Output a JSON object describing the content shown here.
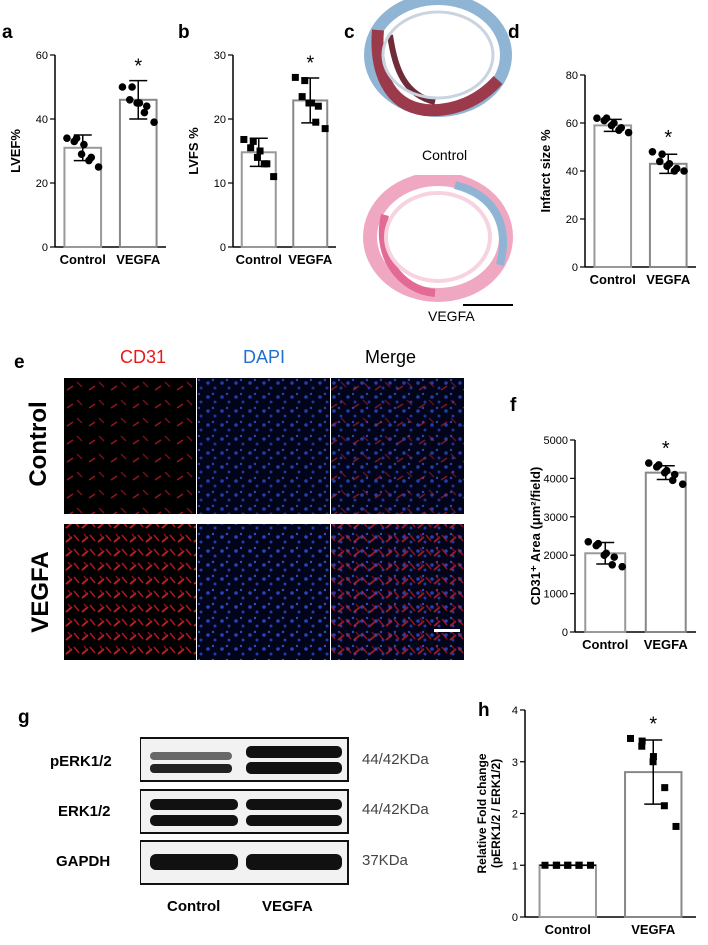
{
  "panels": {
    "a": "a",
    "b": "b",
    "c": "c",
    "d": "d",
    "e": "e",
    "f": "f",
    "g": "g",
    "h": "h"
  },
  "histology": {
    "control_label": "Control",
    "vegfa_label": "VEGFA"
  },
  "micrographs": {
    "channels": [
      "CD31",
      "DAPI",
      "Merge"
    ],
    "rows": [
      "Control",
      "VEGFA"
    ],
    "colors": {
      "cd31": "#e8191b",
      "dapi": "#1f6fd1",
      "merge": "#000000"
    }
  },
  "western": {
    "bands": [
      {
        "name": "pERK1/2",
        "size": "44/42KDa"
      },
      {
        "name": "ERK1/2",
        "size": "44/42KDa"
      },
      {
        "name": "GAPDH",
        "size": "37KDa"
      }
    ],
    "lanes": [
      "Control",
      "VEGFA"
    ]
  },
  "chart_data": [
    {
      "id": "a",
      "type": "bar",
      "ylabel": "LVEF%",
      "ylim": [
        0,
        60
      ],
      "yticks": [
        0,
        20,
        40,
        60
      ],
      "categories": [
        "Control",
        "VEGFA"
      ],
      "values": [
        31,
        46
      ],
      "errors": [
        4,
        6
      ],
      "sig": "*",
      "points": [
        [
          34,
          34,
          33,
          32,
          29,
          28,
          27,
          25
        ],
        [
          50,
          50,
          46,
          45,
          45,
          44,
          42,
          39
        ]
      ],
      "marker": "circle"
    },
    {
      "id": "b",
      "type": "bar",
      "ylabel": "LVFS %",
      "ylim": [
        0,
        30
      ],
      "yticks": [
        0,
        10,
        20,
        30
      ],
      "categories": [
        "Control",
        "VEGFA"
      ],
      "values": [
        14.8,
        22.9
      ],
      "errors": [
        2.2,
        3.5
      ],
      "sig": "*",
      "points": [
        [
          16.8,
          16.5,
          15.5,
          15,
          14,
          13,
          13,
          11
        ],
        [
          26.5,
          26,
          23.5,
          22.5,
          22.5,
          22,
          19.5,
          18.5
        ]
      ],
      "marker": "square"
    },
    {
      "id": "d",
      "type": "bar",
      "ylabel": "Infarct size %",
      "ylim": [
        0,
        80
      ],
      "yticks": [
        0,
        20,
        40,
        60,
        80
      ],
      "categories": [
        "Control",
        "VEGFA"
      ],
      "values": [
        59,
        43
      ],
      "errors": [
        2.5,
        4
      ],
      "sig": "*",
      "points": [
        [
          62,
          62,
          61,
          60,
          59,
          58,
          57,
          56
        ],
        [
          48,
          47,
          44,
          43,
          42,
          41,
          40,
          40
        ]
      ],
      "marker": "circle"
    },
    {
      "id": "f",
      "type": "bar",
      "ylabel": "CD31⁺ Area (μm²/field)",
      "ylim": [
        0,
        5000
      ],
      "yticks": [
        0,
        1000,
        2000,
        3000,
        4000,
        5000
      ],
      "categories": [
        "Control",
        "VEGFA"
      ],
      "values": [
        2050,
        4150
      ],
      "errors": [
        280,
        180
      ],
      "sig": "*",
      "points": [
        [
          2350,
          2300,
          2250,
          2050,
          2000,
          1950,
          1750,
          1700
        ],
        [
          4400,
          4350,
          4300,
          4200,
          4150,
          4100,
          3950,
          3850
        ]
      ],
      "marker": "circle"
    },
    {
      "id": "h",
      "type": "bar",
      "ylabel": "Relative Fold change (pERK1/2 / ERK1/2)",
      "ylim": [
        0,
        4
      ],
      "yticks": [
        0,
        1,
        2,
        3,
        4
      ],
      "categories": [
        "Control",
        "VEGFA"
      ],
      "values": [
        1.0,
        2.8
      ],
      "errors": [
        0.0,
        0.62
      ],
      "sig": "*",
      "points": [
        [
          1,
          1,
          1,
          1,
          1,
          1,
          1,
          1
        ],
        [
          3.45,
          3.4,
          3.3,
          3.1,
          3.0,
          2.5,
          2.15,
          1.75
        ]
      ],
      "marker": "square"
    }
  ]
}
